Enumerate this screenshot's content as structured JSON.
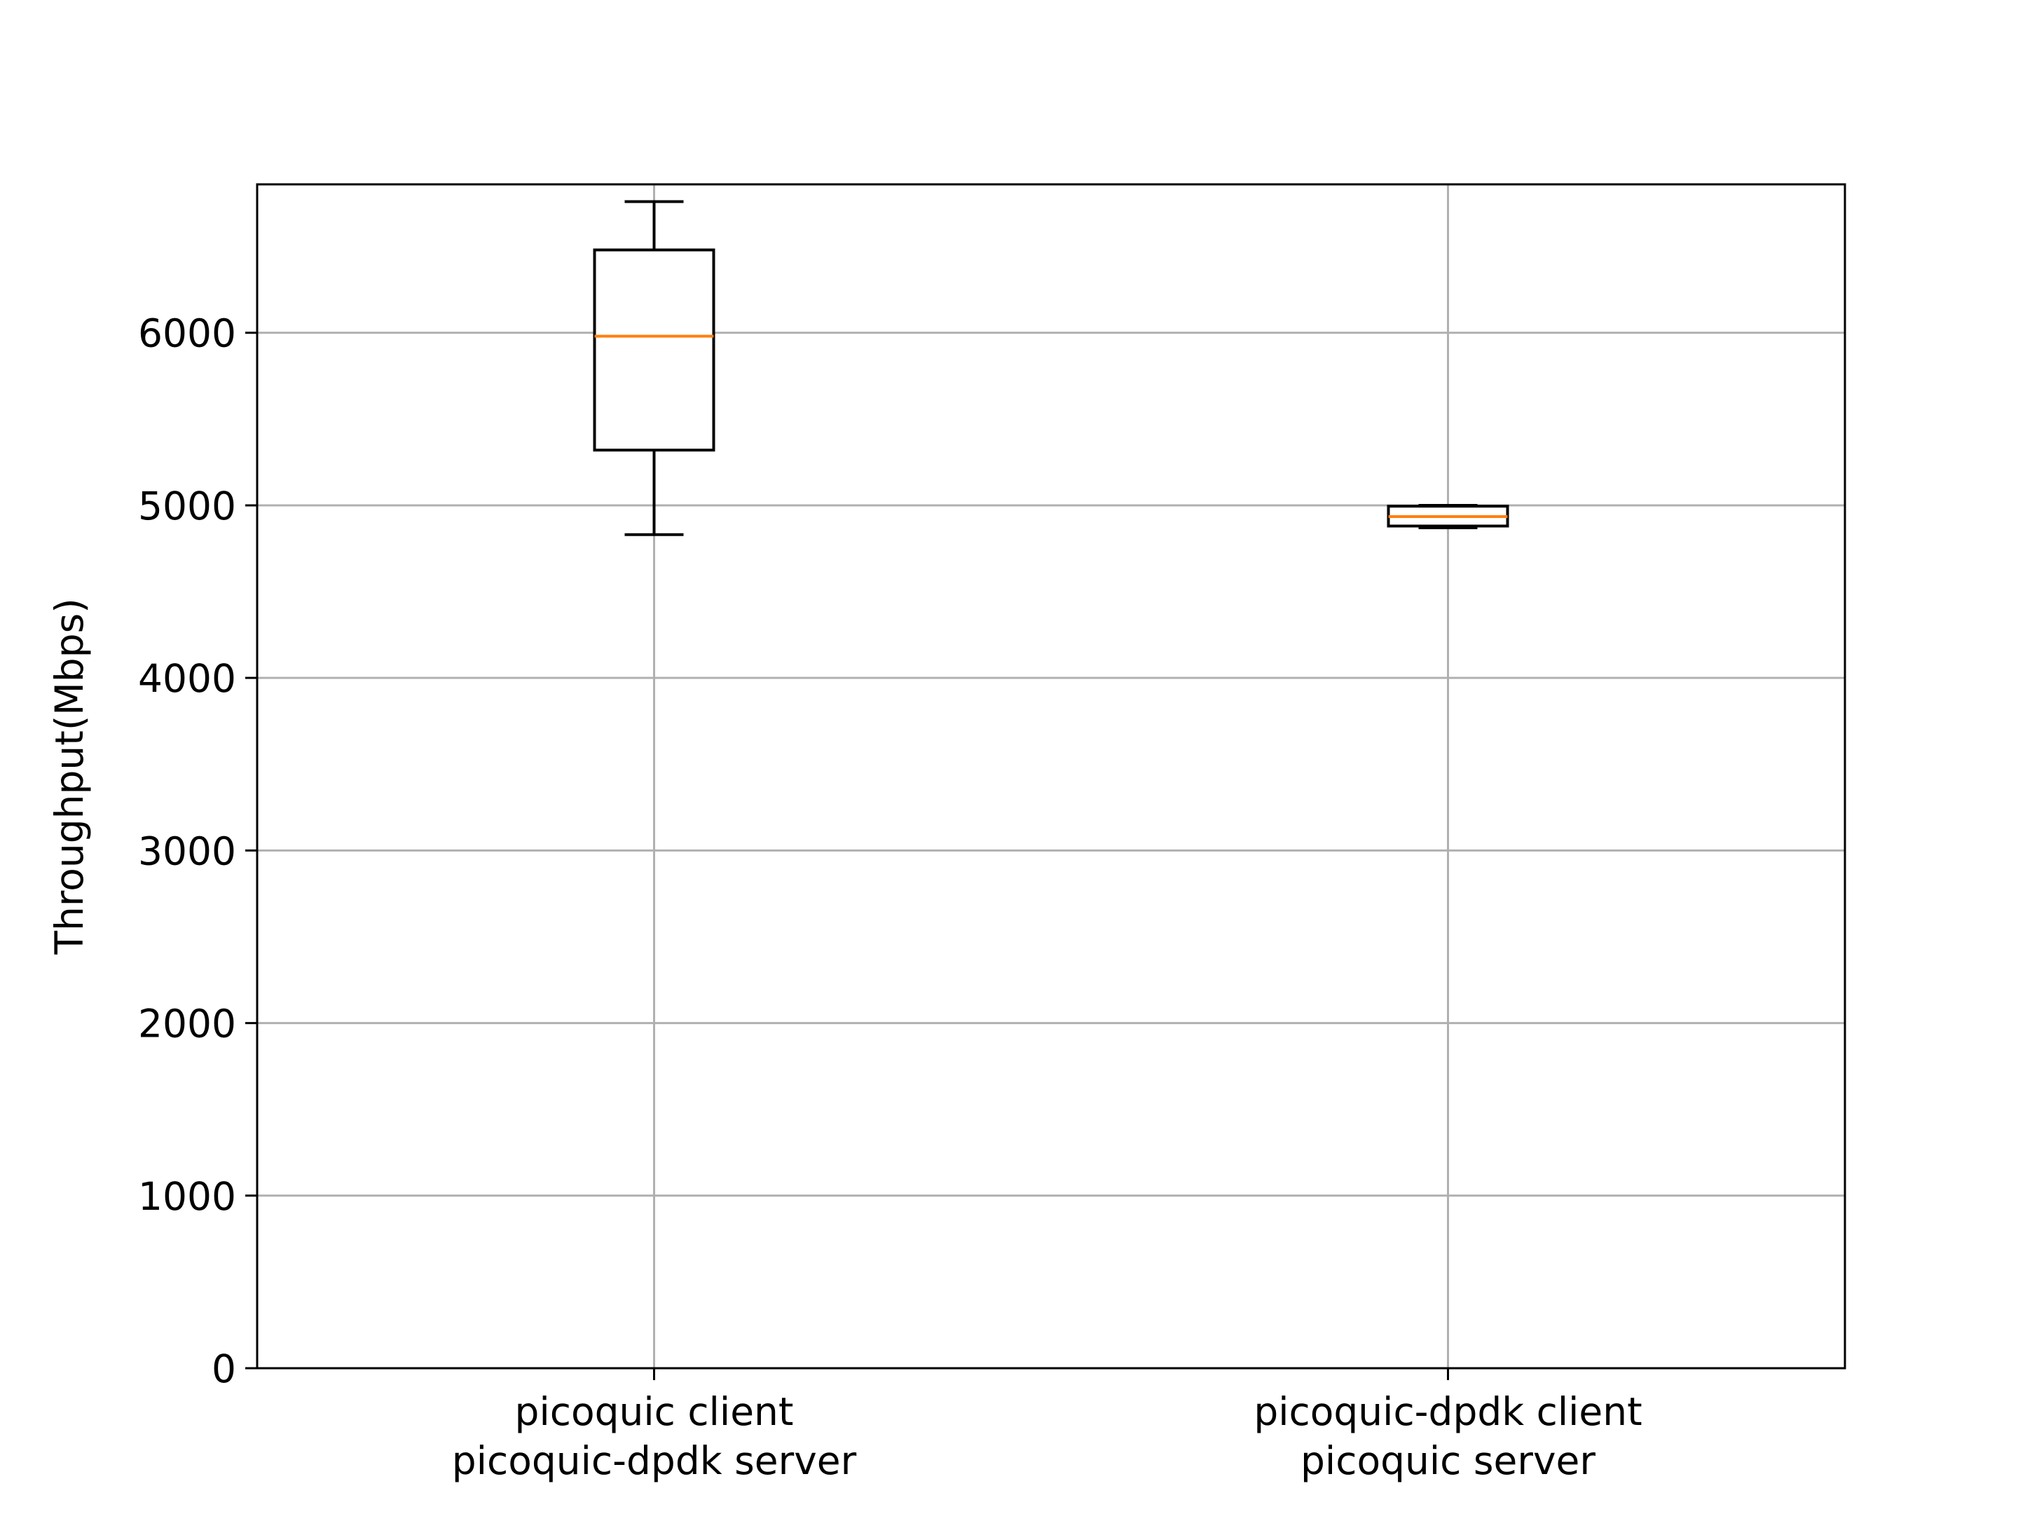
{
  "chart_data": {
    "type": "boxplot",
    "title": "",
    "xlabel": "",
    "ylabel": "Throughput(Mbps)",
    "ylim": [
      0,
      6860
    ],
    "yticks": [
      0,
      1000,
      2000,
      3000,
      4000,
      5000,
      6000
    ],
    "ytick_labels": [
      "0",
      "1000",
      "2000",
      "3000",
      "4000",
      "5000",
      "6000"
    ],
    "grid": true,
    "categories": [
      [
        "picoquic client",
        "picoquic-dpdk server"
      ],
      [
        "picoquic-dpdk client",
        "picoquic server"
      ]
    ],
    "boxes": [
      {
        "whislo": 4830,
        "q1": 5320,
        "med": 5980,
        "q3": 6480,
        "whishi": 6760
      },
      {
        "whislo": 4870,
        "q1": 4880,
        "med": 4935,
        "q3": 4995,
        "whishi": 5000
      }
    ],
    "colors": {
      "box": "#000000",
      "median": "#ff7f0e",
      "grid": "#b0b0b0",
      "axes": "#000000"
    }
  }
}
